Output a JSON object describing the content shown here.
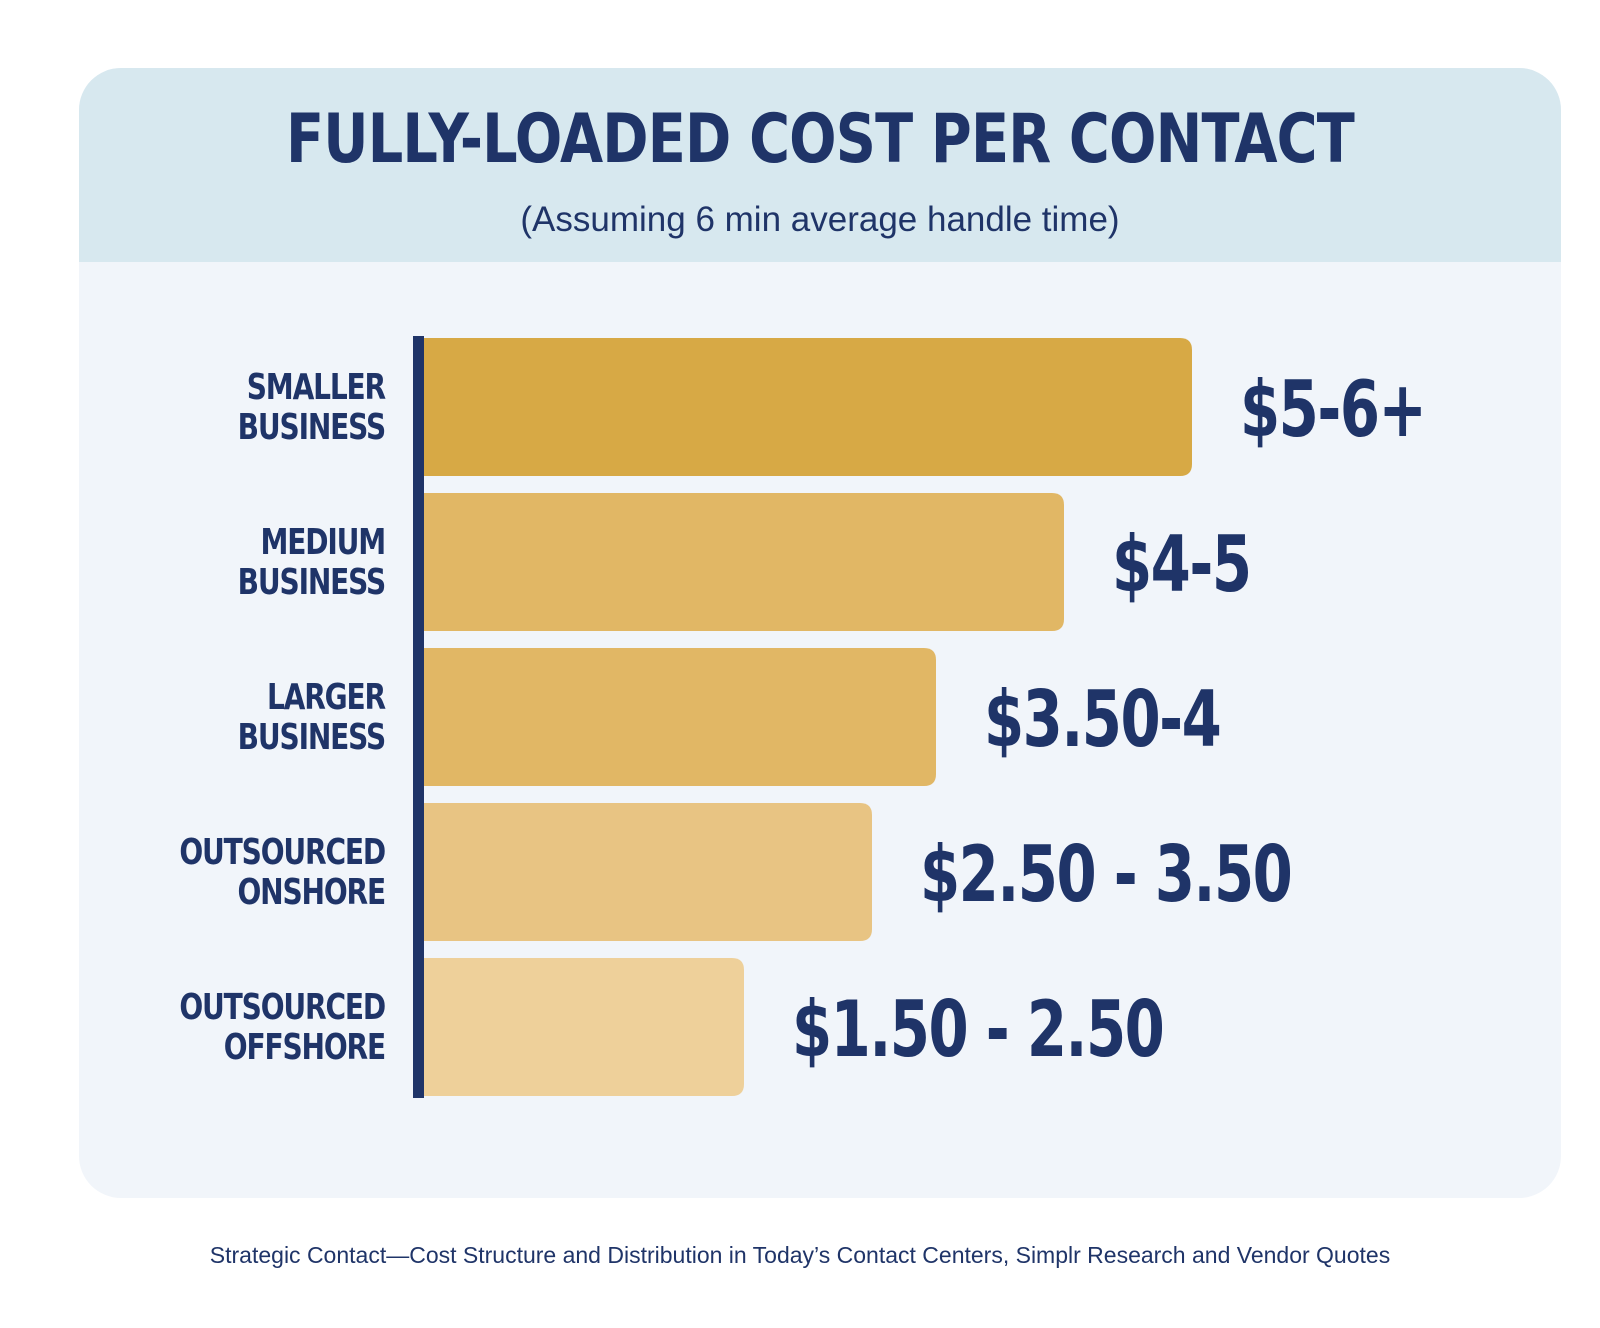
{
  "chart_data": {
    "type": "bar",
    "orientation": "horizontal",
    "title": "FULLY-LOADED COST PER CONTACT",
    "subtitle": "(Assuming 6 min average handle time)",
    "categories": [
      [
        "SMALLER",
        "BUSINESS"
      ],
      [
        "MEDIUM",
        "BUSINESS"
      ],
      [
        "LARGER",
        "BUSINESS"
      ],
      [
        "OUTSOURCED",
        "ONSHORE"
      ],
      [
        "OUTSOURCED",
        "OFFSHORE"
      ]
    ],
    "values": [
      6.0,
      5.0,
      4.0,
      3.5,
      2.5
    ],
    "data_labels": [
      "$5-6+",
      "$4-5",
      "$3.50-4",
      "$2.50 - 3.50",
      "$1.50 - 2.50"
    ],
    "colors": [
      "#d7a945",
      "#e1b765",
      "#e1b765",
      "#e8c483",
      "#eed09a"
    ],
    "grid": false,
    "legend": "none"
  },
  "source": "Strategic Contact—Cost Structure and Distribution in Today’s Contact Centers, Simplr Research and Vendor Quotes",
  "theme": {
    "navy": "#1f3468",
    "card_bg": "#f1f5fa",
    "header_bg": "#d7e8ef"
  }
}
